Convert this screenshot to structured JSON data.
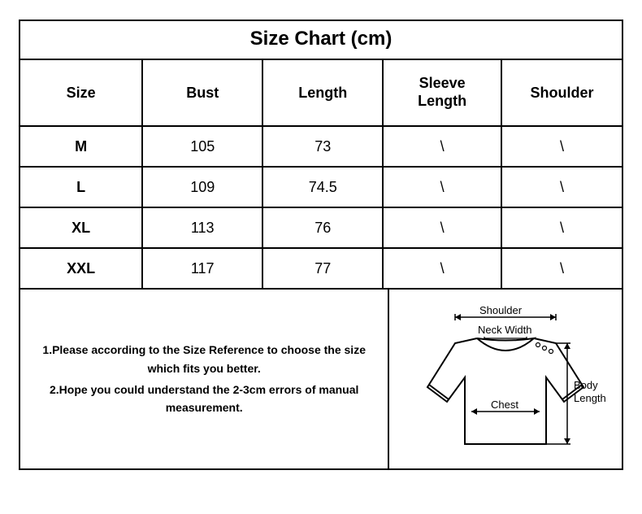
{
  "title": "Size Chart (cm)",
  "columns": [
    "Size",
    "Bust",
    "Length",
    "Sleeve Length",
    "Shoulder"
  ],
  "rows": [
    [
      "M",
      "105",
      "73",
      "\\",
      "\\"
    ],
    [
      "L",
      "109",
      "74.5",
      "\\",
      "\\"
    ],
    [
      "XL",
      "113",
      "76",
      "\\",
      "\\"
    ],
    [
      "XXL",
      "117",
      "77",
      "\\",
      "\\"
    ]
  ],
  "notes": [
    "1.Please according to the Size Reference to choose the size which fits you better.",
    "2.Hope you could understand the 2-3cm errors of manual measurement."
  ],
  "diagram_labels": {
    "shoulder": "Shoulder",
    "neck_width": "Neck Width",
    "chest": "Chest",
    "body_length": "Body Length"
  },
  "styling": {
    "border_color": "#000000",
    "background": "#ffffff",
    "title_fontsize": 24,
    "header_fontsize": 18,
    "cell_fontsize": 18,
    "notes_fontsize": 14,
    "col_widths_pct": [
      20,
      20,
      20,
      20,
      20
    ]
  }
}
